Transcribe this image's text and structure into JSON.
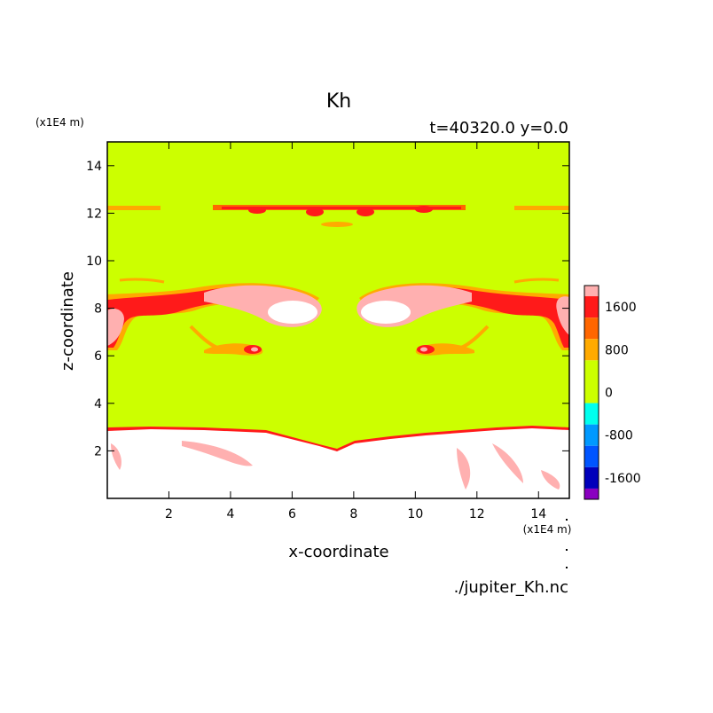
{
  "title": "Kh",
  "subtitle": "t=40320.0 y=0.0",
  "source_file": "./jupiter_Kh.nc",
  "chart_data": {
    "type": "heatmap",
    "title": "Kh",
    "subtitle": "t=40320.0 y=0.0",
    "xlabel": "x-coordinate",
    "ylabel": "z-coordinate",
    "x_unit": "(x1E4 m)",
    "y_unit": "(x1E4 m)",
    "xlim": [
      0,
      15
    ],
    "ylim": [
      0,
      15
    ],
    "x_ticks": [
      2,
      4,
      6,
      8,
      10,
      12,
      14
    ],
    "y_ticks": [
      2,
      4,
      6,
      8,
      10,
      12,
      14
    ],
    "x_tick_labels": [
      "2",
      "4",
      "6",
      "8",
      "10",
      "12",
      "14"
    ],
    "y_tick_labels": [
      "2",
      "4",
      "6",
      "8",
      "10",
      "12",
      "14"
    ],
    "grid": false,
    "colorbar": {
      "placement": "right",
      "labeled_levels": [
        {
          "label": "1600",
          "value": 1600
        },
        {
          "label": "800",
          "value": 800
        },
        {
          "label": "0",
          "value": 0
        },
        {
          "label": "-800",
          "value": -800
        },
        {
          "label": "-1600",
          "value": -1600
        }
      ],
      "bands": [
        {
          "lo": 1800,
          "hi": 2000,
          "color": "#ffb0b0"
        },
        {
          "lo": 1400,
          "hi": 1800,
          "color": "#ff1a1a"
        },
        {
          "lo": 1000,
          "hi": 1400,
          "color": "#ff6600"
        },
        {
          "lo": 600,
          "hi": 1000,
          "color": "#ffaa00"
        },
        {
          "lo": -200,
          "hi": 600,
          "color": "#ccff00"
        },
        {
          "lo": -600,
          "hi": -200,
          "color": "#00ffee"
        },
        {
          "lo": -1000,
          "hi": -600,
          "color": "#0099ff"
        },
        {
          "lo": -1400,
          "hi": -1000,
          "color": "#0055ff"
        },
        {
          "lo": -1800,
          "hi": -1400,
          "color": "#0000bb"
        },
        {
          "lo": -2000,
          "hi": -1800,
          "color": "#8a00c0"
        }
      ]
    },
    "background_value_band": "0",
    "saturated_color": "#ffffff",
    "features": [
      {
        "name": "saturated-lower-layer",
        "z_range": [
          0.1,
          2.8
        ],
        "level": "above 2000"
      },
      {
        "name": "band-z-12.2",
        "z": 12.2,
        "level": "800-1800"
      },
      {
        "name": "left-vortex",
        "x": 6.0,
        "z": 7.9,
        "level": "above 1800"
      },
      {
        "name": "right-vortex",
        "x": 9.3,
        "z": 7.9,
        "level": "above 1800"
      },
      {
        "name": "left-lower-arm",
        "x": 4.8,
        "z": 6.2,
        "level": "800-1800"
      },
      {
        "name": "right-lower-arm",
        "x": 10.5,
        "z": 6.2,
        "level": "800-1800"
      }
    ]
  }
}
